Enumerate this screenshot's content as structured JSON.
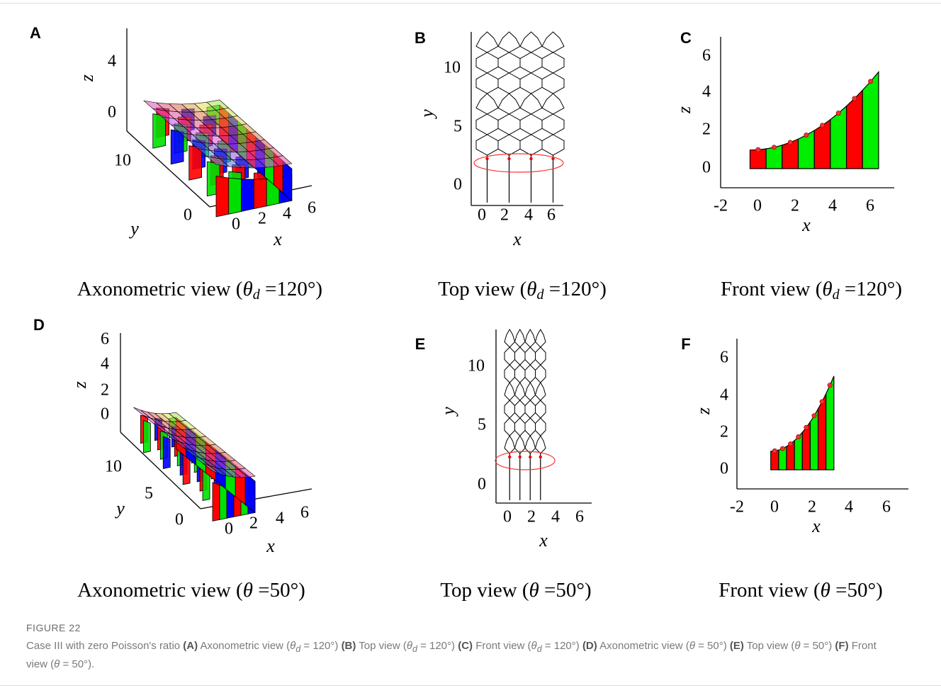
{
  "panels": [
    {
      "letter": "A",
      "caption": {
        "pre": "Axonometric view (",
        "var": "θ",
        "sub": "d",
        "post": " =120°)"
      },
      "axes": {
        "z_label": "z",
        "y_label": "y",
        "x_label": "x",
        "z_ticks": [
          "0",
          "4"
        ],
        "y_ticks": [
          "0",
          "10"
        ],
        "x_ticks": [
          "0",
          "2",
          "4",
          "6"
        ]
      }
    },
    {
      "letter": "B",
      "caption": {
        "pre": "Top view (",
        "var": "θ",
        "sub": "d",
        "post": " =120°)"
      },
      "axes": {
        "y_label": "y",
        "x_label": "x",
        "y_ticks": [
          "0",
          "5",
          "10"
        ],
        "x_ticks": [
          "0",
          "2",
          "4",
          "6"
        ]
      }
    },
    {
      "letter": "C",
      "caption": {
        "pre": "Front view (",
        "var": "θ",
        "sub": "d",
        "post": " =120°)"
      },
      "axes": {
        "z_label": "z",
        "x_label": "x",
        "z_ticks": [
          "0",
          "2",
          "4",
          "6"
        ],
        "x_ticks": [
          "-2",
          "0",
          "2",
          "4",
          "6"
        ]
      }
    },
    {
      "letter": "D",
      "caption": {
        "pre": "Axonometric view (",
        "var": "θ",
        "post": " =50°)"
      },
      "axes": {
        "z_label": "z",
        "y_label": "y",
        "x_label": "x",
        "z_ticks": [
          "0",
          "2",
          "4",
          "6"
        ],
        "y_ticks": [
          "0",
          "5",
          "10"
        ],
        "x_ticks": [
          "0",
          "2",
          "4",
          "6"
        ]
      }
    },
    {
      "letter": "E",
      "caption": {
        "pre": "Top view (",
        "var": "θ",
        "post": " =50°)"
      },
      "axes": {
        "y_label": "y",
        "x_label": "x",
        "y_ticks": [
          "0",
          "5",
          "10"
        ],
        "x_ticks": [
          "0",
          "2",
          "4",
          "6"
        ]
      }
    },
    {
      "letter": "F",
      "caption": {
        "pre": "Front view (",
        "var": "θ",
        "post": " =50°)"
      },
      "axes": {
        "z_label": "z",
        "x_label": "x",
        "z_ticks": [
          "0",
          "2",
          "4",
          "6"
        ],
        "x_ticks": [
          "-2",
          "0",
          "2",
          "4",
          "6"
        ]
      }
    }
  ],
  "figure_label": "FIGURE 22",
  "figure_caption": [
    {
      "text": "Case III with zero Poisson's ratio "
    },
    {
      "bold": "(A)"
    },
    {
      "text": " Axonometric view ("
    },
    {
      "italic": "θ"
    },
    {
      "sub": "d"
    },
    {
      "text": " = 120°) "
    },
    {
      "bold": "(B)"
    },
    {
      "text": " Top view ("
    },
    {
      "italic": "θ"
    },
    {
      "sub": "d"
    },
    {
      "text": " = 120°) "
    },
    {
      "bold": "(C)"
    },
    {
      "text": " Front view ("
    },
    {
      "italic": "θ"
    },
    {
      "sub": "d"
    },
    {
      "text": " = 120°) "
    },
    {
      "bold": "(D)"
    },
    {
      "text": " Axonometric view ("
    },
    {
      "italic": "θ"
    },
    {
      "text": " = 50°) "
    },
    {
      "bold": "(E)"
    },
    {
      "text": " Top view ("
    },
    {
      "italic": "θ"
    },
    {
      "text": " = 50°) "
    },
    {
      "bold": "(F)"
    },
    {
      "text": " Front view ("
    },
    {
      "italic": "θ"
    },
    {
      "text": " = 50°)."
    }
  ]
}
